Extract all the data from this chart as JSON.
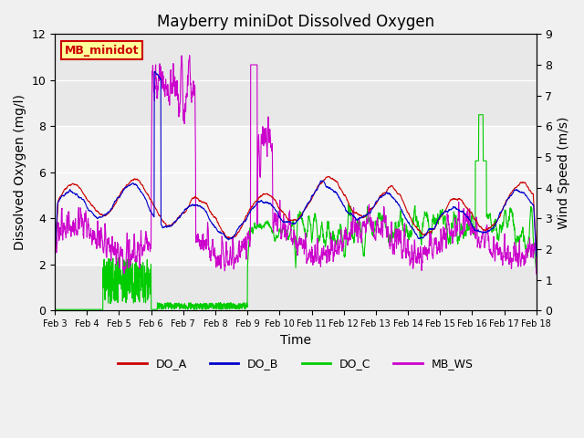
{
  "title": "Mayberry miniDot Dissolved Oxygen",
  "xlabel": "Time",
  "ylabel_left": "Dissolved Oxygen (mg/l)",
  "ylabel_right": "Wind Speed (m/s)",
  "ylim_left": [
    0,
    12
  ],
  "ylim_right": [
    0,
    9.0
  ],
  "yticks_left": [
    0,
    2,
    4,
    6,
    8,
    10,
    12
  ],
  "yticks_right": [
    0.0,
    1.0,
    2.0,
    3.0,
    4.0,
    5.0,
    6.0,
    7.0,
    8.0,
    9.0
  ],
  "n_days": 15,
  "xtick_labels": [
    "Feb 3",
    "Feb 4",
    "Feb 5",
    "Feb 6",
    "Feb 7",
    "Feb 8",
    "Feb 9",
    "Feb 10",
    "Feb 11",
    "Feb 12",
    "Feb 13",
    "Feb 14",
    "Feb 15",
    "Feb 16",
    "Feb 17",
    "Feb 18"
  ],
  "shaded_band": [
    2,
    8
  ],
  "colors": {
    "DO_A": "#cc0000",
    "DO_B": "#0000cc",
    "DO_C": "#00cc00",
    "MB_WS": "#cc00cc"
  },
  "annotation_text": "MB_minidot",
  "annotation_box_color": "#ffff99",
  "annotation_box_edge": "#cc0000",
  "background_color": "#e8e8e8"
}
